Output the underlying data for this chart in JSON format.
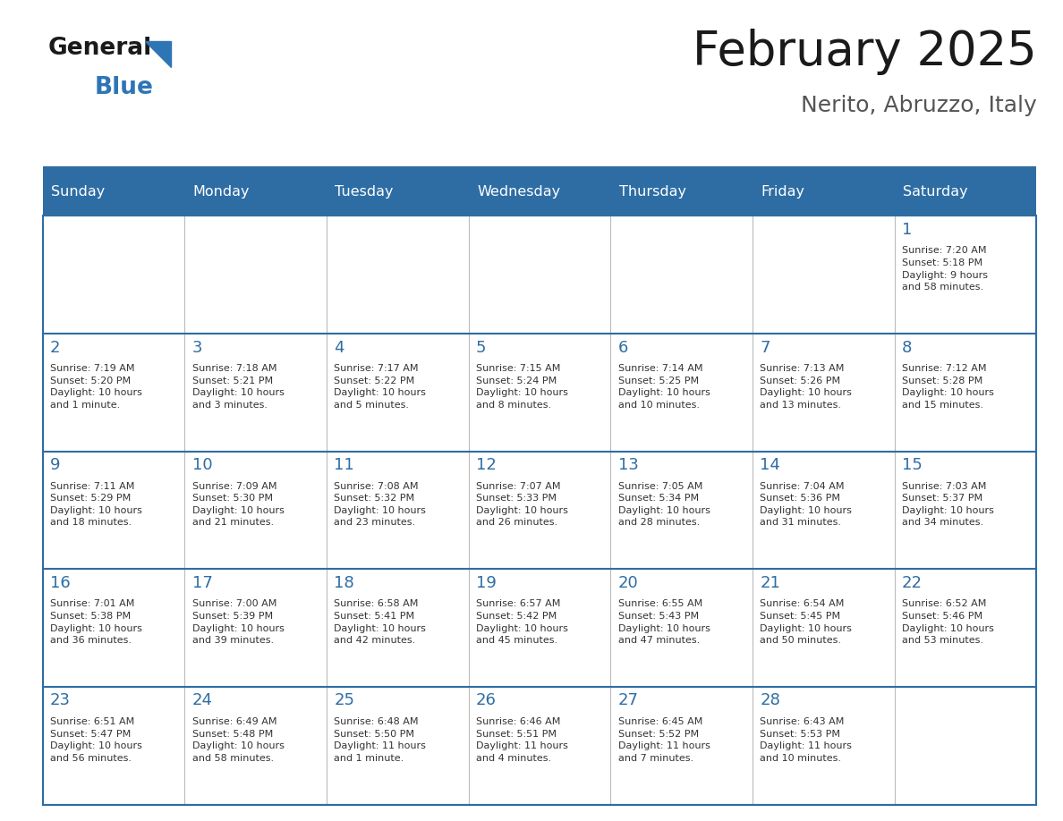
{
  "title": "February 2025",
  "subtitle": "Nerito, Abruzzo, Italy",
  "header_bg": "#2E6DA4",
  "header_text": "#FFFFFF",
  "border_color": "#2E6DA4",
  "title_color": "#1a1a1a",
  "subtitle_color": "#555555",
  "day_num_color": "#2E6DA4",
  "cell_text_color": "#333333",
  "days_of_week": [
    "Sunday",
    "Monday",
    "Tuesday",
    "Wednesday",
    "Thursday",
    "Friday",
    "Saturday"
  ],
  "weeks": [
    [
      {
        "day": null,
        "info": null
      },
      {
        "day": null,
        "info": null
      },
      {
        "day": null,
        "info": null
      },
      {
        "day": null,
        "info": null
      },
      {
        "day": null,
        "info": null
      },
      {
        "day": null,
        "info": null
      },
      {
        "day": 1,
        "info": "Sunrise: 7:20 AM\nSunset: 5:18 PM\nDaylight: 9 hours\nand 58 minutes."
      }
    ],
    [
      {
        "day": 2,
        "info": "Sunrise: 7:19 AM\nSunset: 5:20 PM\nDaylight: 10 hours\nand 1 minute."
      },
      {
        "day": 3,
        "info": "Sunrise: 7:18 AM\nSunset: 5:21 PM\nDaylight: 10 hours\nand 3 minutes."
      },
      {
        "day": 4,
        "info": "Sunrise: 7:17 AM\nSunset: 5:22 PM\nDaylight: 10 hours\nand 5 minutes."
      },
      {
        "day": 5,
        "info": "Sunrise: 7:15 AM\nSunset: 5:24 PM\nDaylight: 10 hours\nand 8 minutes."
      },
      {
        "day": 6,
        "info": "Sunrise: 7:14 AM\nSunset: 5:25 PM\nDaylight: 10 hours\nand 10 minutes."
      },
      {
        "day": 7,
        "info": "Sunrise: 7:13 AM\nSunset: 5:26 PM\nDaylight: 10 hours\nand 13 minutes."
      },
      {
        "day": 8,
        "info": "Sunrise: 7:12 AM\nSunset: 5:28 PM\nDaylight: 10 hours\nand 15 minutes."
      }
    ],
    [
      {
        "day": 9,
        "info": "Sunrise: 7:11 AM\nSunset: 5:29 PM\nDaylight: 10 hours\nand 18 minutes."
      },
      {
        "day": 10,
        "info": "Sunrise: 7:09 AM\nSunset: 5:30 PM\nDaylight: 10 hours\nand 21 minutes."
      },
      {
        "day": 11,
        "info": "Sunrise: 7:08 AM\nSunset: 5:32 PM\nDaylight: 10 hours\nand 23 minutes."
      },
      {
        "day": 12,
        "info": "Sunrise: 7:07 AM\nSunset: 5:33 PM\nDaylight: 10 hours\nand 26 minutes."
      },
      {
        "day": 13,
        "info": "Sunrise: 7:05 AM\nSunset: 5:34 PM\nDaylight: 10 hours\nand 28 minutes."
      },
      {
        "day": 14,
        "info": "Sunrise: 7:04 AM\nSunset: 5:36 PM\nDaylight: 10 hours\nand 31 minutes."
      },
      {
        "day": 15,
        "info": "Sunrise: 7:03 AM\nSunset: 5:37 PM\nDaylight: 10 hours\nand 34 minutes."
      }
    ],
    [
      {
        "day": 16,
        "info": "Sunrise: 7:01 AM\nSunset: 5:38 PM\nDaylight: 10 hours\nand 36 minutes."
      },
      {
        "day": 17,
        "info": "Sunrise: 7:00 AM\nSunset: 5:39 PM\nDaylight: 10 hours\nand 39 minutes."
      },
      {
        "day": 18,
        "info": "Sunrise: 6:58 AM\nSunset: 5:41 PM\nDaylight: 10 hours\nand 42 minutes."
      },
      {
        "day": 19,
        "info": "Sunrise: 6:57 AM\nSunset: 5:42 PM\nDaylight: 10 hours\nand 45 minutes."
      },
      {
        "day": 20,
        "info": "Sunrise: 6:55 AM\nSunset: 5:43 PM\nDaylight: 10 hours\nand 47 minutes."
      },
      {
        "day": 21,
        "info": "Sunrise: 6:54 AM\nSunset: 5:45 PM\nDaylight: 10 hours\nand 50 minutes."
      },
      {
        "day": 22,
        "info": "Sunrise: 6:52 AM\nSunset: 5:46 PM\nDaylight: 10 hours\nand 53 minutes."
      }
    ],
    [
      {
        "day": 23,
        "info": "Sunrise: 6:51 AM\nSunset: 5:47 PM\nDaylight: 10 hours\nand 56 minutes."
      },
      {
        "day": 24,
        "info": "Sunrise: 6:49 AM\nSunset: 5:48 PM\nDaylight: 10 hours\nand 58 minutes."
      },
      {
        "day": 25,
        "info": "Sunrise: 6:48 AM\nSunset: 5:50 PM\nDaylight: 11 hours\nand 1 minute."
      },
      {
        "day": 26,
        "info": "Sunrise: 6:46 AM\nSunset: 5:51 PM\nDaylight: 11 hours\nand 4 minutes."
      },
      {
        "day": 27,
        "info": "Sunrise: 6:45 AM\nSunset: 5:52 PM\nDaylight: 11 hours\nand 7 minutes."
      },
      {
        "day": 28,
        "info": "Sunrise: 6:43 AM\nSunset: 5:53 PM\nDaylight: 11 hours\nand 10 minutes."
      },
      {
        "day": null,
        "info": null
      }
    ]
  ]
}
